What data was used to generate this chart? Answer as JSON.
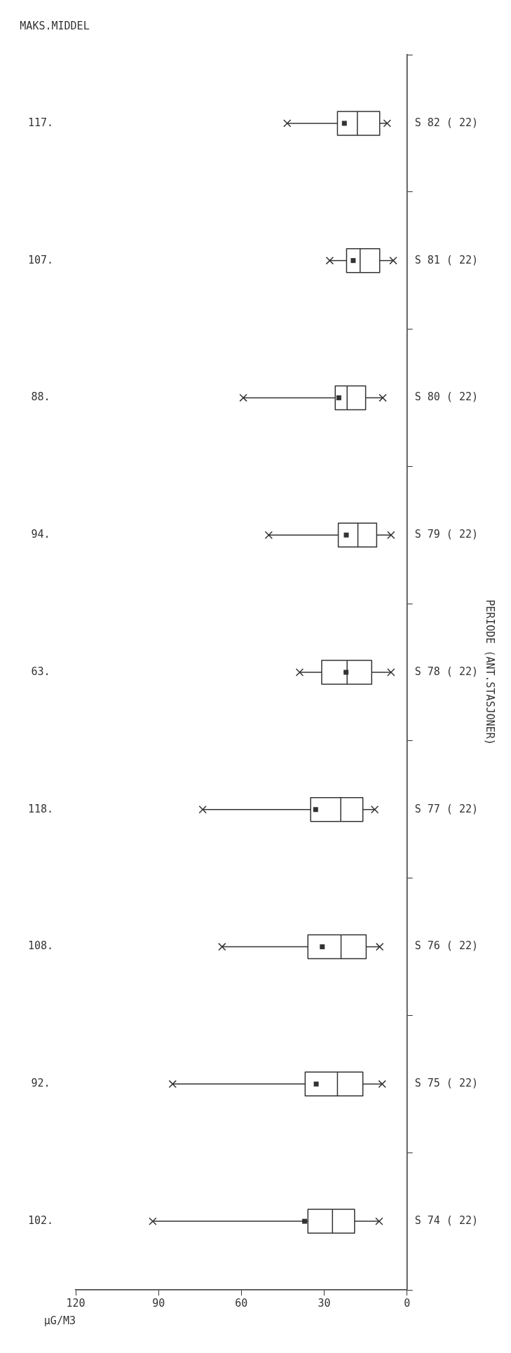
{
  "chart_data": {
    "type": "box",
    "orientation": "horizontal",
    "color": "#333333",
    "categories": [
      "S 82 ( 22)",
      "S 81 ( 22)",
      "S 80 ( 22)",
      "S 79 ( 22)",
      "S 78 ( 22)",
      "S 77 ( 22)",
      "S 76 ( 22)",
      "S 75 ( 22)",
      "S 74 ( 22)"
    ],
    "boxes": [
      {
        "low": 7.2,
        "q1": 9.9,
        "median": 18,
        "q3": 25.2,
        "high": 43.4,
        "mean": 22.7
      },
      {
        "low": 5,
        "q1": 9.9,
        "median": 17,
        "q3": 21.9,
        "high": 28,
        "mean": 19.5
      },
      {
        "low": 8.8,
        "q1": 15,
        "median": 21.7,
        "q3": 26,
        "high": 59.3,
        "mean": 24.7
      },
      {
        "low": 5.8,
        "q1": 11,
        "median": 17.8,
        "q3": 24.9,
        "high": 50.1,
        "mean": 22
      },
      {
        "low": 5.8,
        "q1": 12.8,
        "median": 21.7,
        "q3": 30.9,
        "high": 38.9,
        "mean": 22.1
      },
      {
        "low": 11.7,
        "q1": 16,
        "median": 24,
        "q3": 34.9,
        "high": 74,
        "mean": 33.1
      },
      {
        "low": 9.9,
        "q1": 14.8,
        "median": 23.9,
        "q3": 35.9,
        "high": 67,
        "mean": 30.7
      },
      {
        "low": 9,
        "q1": 16,
        "median": 25.2,
        "q3": 36.9,
        "high": 84.9,
        "mean": 32.9
      },
      {
        "low": 10.1,
        "q1": 19,
        "median": 27,
        "q3": 35.9,
        "high": 92.1,
        "mean": 37.1
      }
    ],
    "xlim": [
      120,
      0
    ],
    "xticks": [
      0,
      30,
      60,
      90,
      120
    ],
    "xlabel": "µG/M3",
    "ylabel": "PERIODE (ANT.STASJONER)",
    "grid": false,
    "legend": false,
    "series": [
      {
        "type": "scatter",
        "marker": "cross",
        "color": "#333333",
        "values": [
          7.2,
          5,
          8.8,
          5.8,
          5.8,
          11.7,
          9.9,
          9,
          10.1
        ]
      },
      {
        "type": "scatter",
        "marker": "cross",
        "color": "#333333",
        "values": [
          43.4,
          28,
          59.3,
          50.1,
          38.9,
          74,
          67,
          84.9,
          92.1
        ]
      }
    ],
    "annotations": [
      "MAKS.MIDDEL",
      "117.",
      "107.",
      "88.",
      "94.",
      "63.",
      "118.",
      "108.",
      "92.",
      "102."
    ]
  }
}
